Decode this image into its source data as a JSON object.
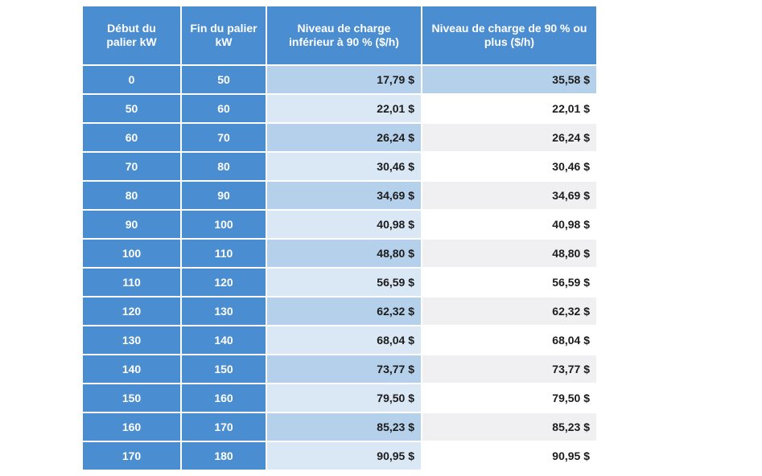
{
  "header": {
    "col_start": "Début  du palier kW",
    "col_end": "Fin du palier kW",
    "col_low": "Niveau de charge inférieur à 90 % ($/h)",
    "col_high": "Niveau de charge de 90 % ou plus ($/h)"
  },
  "rows": [
    {
      "start": "0",
      "end": "50",
      "low": "17,79 $",
      "high": "35,58 $"
    },
    {
      "start": "50",
      "end": "60",
      "low": "22,01 $",
      "high": "22,01 $"
    },
    {
      "start": "60",
      "end": "70",
      "low": "26,24 $",
      "high": "26,24 $"
    },
    {
      "start": "70",
      "end": "80",
      "low": "30,46 $",
      "high": "30,46 $"
    },
    {
      "start": "80",
      "end": "90",
      "low": "34,69 $",
      "high": "34,69 $"
    },
    {
      "start": "90",
      "end": "100",
      "low": "40,98 $",
      "high": "40,98 $"
    },
    {
      "start": "100",
      "end": "110",
      "low": "48,80 $",
      "high": "48,80 $"
    },
    {
      "start": "110",
      "end": "120",
      "low": "56,59 $",
      "high": "56,59 $"
    },
    {
      "start": "120",
      "end": "130",
      "low": "62,32 $",
      "high": "62,32 $"
    },
    {
      "start": "130",
      "end": "140",
      "low": "68,04 $",
      "high": "68,04 $"
    },
    {
      "start": "140",
      "end": "150",
      "low": "73,77 $",
      "high": "73,77 $"
    },
    {
      "start": "150",
      "end": "160",
      "low": "79,50 $",
      "high": "79,50 $"
    },
    {
      "start": "160",
      "end": "170",
      "low": "85,23 $",
      "high": "85,23 $"
    },
    {
      "start": "170",
      "end": "180",
      "low": "90,95 $",
      "high": "90,95 $"
    }
  ],
  "colors": {
    "header_blue": "#4a8dd0",
    "rate_low_dark": "#b5d0ea",
    "rate_low_light": "#dae7f4",
    "rate_high_grey": "#f0f0f3",
    "white": "#ffffff"
  }
}
